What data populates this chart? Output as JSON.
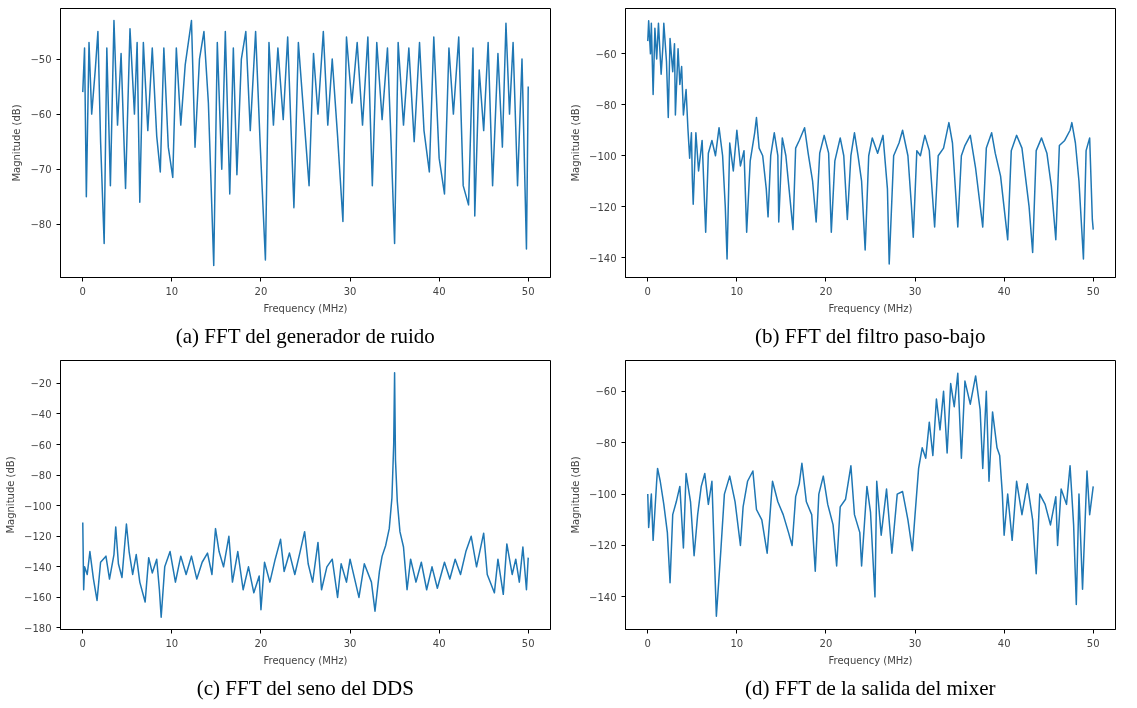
{
  "chart_data": [
    {
      "type": "line",
      "title": "(a) FFT del generador de ruido",
      "xlabel": "Frequency (MHz)",
      "ylabel": "Magnitude (dB)",
      "color": "#1f77b4",
      "grid": false,
      "xlim": [
        -2.5,
        52.5
      ],
      "ylim": [
        -89.7,
        -40.8
      ],
      "xticks": [
        0,
        10,
        20,
        30,
        40,
        50
      ],
      "yticks": [
        -80,
        -70,
        -60,
        -50
      ],
      "x": [
        0,
        0.2,
        0.4,
        0.7,
        1.0,
        1.4,
        1.7,
        2.0,
        2.4,
        2.7,
        3.1,
        3.5,
        3.9,
        4.3,
        4.8,
        5.3,
        5.8,
        6.1,
        6.4,
        6.8,
        7.3,
        7.8,
        8.3,
        8.7,
        9.1,
        9.6,
        10.1,
        10.5,
        11.0,
        11.5,
        12.2,
        12.6,
        13.1,
        13.6,
        14.1,
        14.7,
        15.1,
        15.6,
        16.0,
        16.5,
        16.9,
        17.3,
        17.8,
        18.3,
        18.8,
        19.4,
        19.9,
        20.5,
        20.9,
        21.4,
        21.9,
        22.5,
        23.0,
        23.7,
        24.2,
        24.8,
        25.4,
        25.9,
        26.4,
        27.0,
        27.5,
        28.0,
        28.6,
        29.2,
        29.6,
        30.2,
        30.8,
        31.4,
        32.0,
        32.5,
        33.0,
        33.6,
        34.2,
        34.6,
        35.0,
        35.4,
        36.0,
        36.6,
        37.2,
        37.8,
        38.3,
        38.9,
        39.4,
        40.0,
        40.6,
        41.1,
        41.6,
        42.2,
        42.7,
        43.3,
        43.8,
        44.0,
        44.5,
        45.0,
        45.5,
        46.0,
        46.6,
        47.1,
        47.5,
        47.9,
        48.3,
        48.8,
        49.3,
        49.8,
        50.0
      ],
      "values": [
        -56,
        -48,
        -75,
        -47,
        -60,
        -52,
        -45,
        -65,
        -83.5,
        -48,
        -73,
        -43,
        -62,
        -49,
        -73.5,
        -44.5,
        -60,
        -47,
        -76,
        -47,
        -63,
        -48,
        -64,
        -70.5,
        -48,
        -66,
        -71.5,
        -48,
        -62,
        -51,
        -43,
        -66,
        -50,
        -45,
        -58,
        -87.5,
        -47,
        -70,
        -45,
        -74.5,
        -48,
        -71,
        -50,
        -45,
        -63,
        -45,
        -65,
        -86.5,
        -47,
        -62,
        -48,
        -61,
        -46,
        -77,
        -47,
        -60,
        -73,
        -49,
        -60,
        -45,
        -62,
        -50,
        -64,
        -79.5,
        -46,
        -58,
        -47,
        -62,
        -46,
        -73,
        -47,
        -61,
        -48,
        -65,
        -83.5,
        -47,
        -62,
        -48,
        -65,
        -47,
        -63,
        -70.5,
        -46,
        -68,
        -74.5,
        -48,
        -60,
        -46,
        -73,
        -76.5,
        -48,
        -78.5,
        -52,
        -63,
        -47,
        -73,
        -49,
        -66,
        -43.5,
        -60,
        -47,
        -73,
        -50,
        -84.5,
        -55
      ]
    },
    {
      "type": "line",
      "title": "(b) FFT del filtro paso-bajo",
      "xlabel": "Frequency (MHz)",
      "ylabel": "Magnitude (dB)",
      "color": "#1f77b4",
      "grid": false,
      "xlim": [
        -2.5,
        52.5
      ],
      "ylim": [
        -147.8,
        -42.2
      ],
      "xticks": [
        0,
        10,
        20,
        30,
        40,
        50
      ],
      "yticks": [
        -140,
        -120,
        -100,
        -80,
        -60
      ],
      "x": [
        0,
        0.1,
        0.3,
        0.4,
        0.6,
        0.8,
        1.0,
        1.2,
        1.5,
        1.7,
        1.8,
        2.1,
        2.3,
        2.5,
        2.8,
        3.0,
        3.1,
        3.4,
        3.6,
        3.8,
        4.0,
        4.3,
        4.5,
        4.7,
        4.9,
        5.0,
        5.1,
        5.4,
        5.7,
        6.1,
        6.5,
        6.8,
        7.2,
        7.6,
        8.0,
        8.4,
        8.7,
        8.9,
        9.2,
        9.6,
        10.0,
        10.4,
        10.8,
        11.1,
        11.5,
        12.0,
        12.2,
        12.5,
        12.9,
        13.3,
        13.5,
        13.8,
        14.2,
        14.6,
        14.7,
        15.1,
        15.5,
        16.3,
        16.6,
        17.0,
        17.6,
        18.0,
        18.5,
        18.9,
        19.3,
        19.8,
        20.3,
        20.6,
        21.0,
        21.6,
        22.0,
        22.4,
        22.8,
        23.2,
        23.6,
        24.0,
        24.4,
        24.8,
        25.2,
        25.8,
        26.4,
        26.9,
        27.1,
        27.6,
        28.2,
        28.6,
        29.2,
        29.6,
        29.8,
        30.2,
        30.6,
        31.1,
        31.6,
        32.2,
        32.6,
        33.2,
        33.8,
        34.2,
        34.8,
        35.2,
        35.6,
        36.2,
        36.8,
        37.6,
        38.0,
        38.6,
        39.0,
        39.6,
        40.4,
        40.8,
        41.4,
        42.0,
        42.8,
        43.2,
        43.6,
        44.2,
        44.8,
        45.3,
        45.8,
        46.2,
        46.8,
        47.4,
        47.6,
        48.0,
        48.4,
        48.9,
        49.2,
        49.6,
        49.9,
        50.0
      ],
      "values": [
        -55,
        -47,
        -60,
        -48,
        -76,
        -50,
        -62,
        -48,
        -68,
        -57,
        -48,
        -63,
        -85,
        -54,
        -67,
        -56,
        -84,
        -58,
        -72,
        -65,
        -84,
        -74,
        -89,
        -101,
        -91,
        -109,
        -119,
        -91,
        -106,
        -94,
        -130,
        -99,
        -94,
        -100,
        -89,
        -100,
        -120,
        -140.5,
        -95,
        -106,
        -90,
        -104,
        -98,
        -130,
        -102,
        -91,
        -85,
        -97,
        -100,
        -113,
        -124,
        -100,
        -91,
        -100,
        -126,
        -93,
        -100,
        -129,
        -97,
        -94,
        -89,
        -99,
        -110,
        -126,
        -99,
        -92,
        -99,
        -130,
        -102,
        -93,
        -100,
        -125,
        -100,
        -91,
        -100,
        -110,
        -137,
        -100,
        -93,
        -99,
        -92,
        -113,
        -142.5,
        -100,
        -95,
        -90,
        -100,
        -120,
        -132,
        -98,
        -100,
        -92,
        -98,
        -128,
        -100,
        -97,
        -87,
        -95,
        -128,
        -100,
        -96,
        -92,
        -105,
        -128,
        -97,
        -91,
        -99,
        -108,
        -133,
        -98,
        -92,
        -97,
        -120,
        -138,
        -98,
        -93,
        -99,
        -112,
        -133,
        -96,
        -94,
        -90,
        -87,
        -95,
        -110,
        -140.5,
        -98,
        -93,
        -125,
        -129
      ]
    },
    {
      "type": "line",
      "title": "(c) FFT del seno del DDS",
      "xlabel": "Frequency (MHz)",
      "ylabel": "Magnitude (dB)",
      "color": "#1f77b4",
      "grid": false,
      "xlim": [
        -2.5,
        52.5
      ],
      "ylim": [
        -181,
        -5
      ],
      "xticks": [
        0,
        10,
        20,
        30,
        40,
        50
      ],
      "yticks": [
        -180,
        -160,
        -140,
        -120,
        -100,
        -80,
        -60,
        -40,
        -20
      ],
      "x": [
        0,
        0.1,
        0.2,
        0.5,
        0.8,
        1.2,
        1.6,
        2.0,
        2.6,
        3.0,
        3.5,
        3.7,
        4.0,
        4.4,
        4.9,
        5.2,
        5.6,
        6.0,
        6.4,
        7.0,
        7.4,
        7.8,
        8.3,
        8.6,
        8.8,
        9.2,
        9.8,
        10.4,
        11.0,
        11.6,
        12.2,
        12.8,
        13.4,
        14.0,
        14.5,
        14.9,
        15.3,
        15.8,
        16.4,
        16.8,
        17.4,
        18.0,
        18.6,
        19.2,
        19.8,
        20.0,
        20.4,
        21.0,
        21.6,
        22.2,
        22.6,
        23.2,
        23.8,
        24.4,
        24.9,
        25.3,
        25.8,
        26.4,
        26.8,
        27.4,
        28.0,
        28.6,
        29.0,
        29.6,
        30.0,
        31.0,
        31.6,
        32.4,
        32.8,
        33.3,
        33.6,
        34.0,
        34.4,
        34.7,
        34.9,
        35.0,
        35.1,
        35.3,
        35.6,
        36.0,
        36.4,
        36.8,
        37.4,
        38.0,
        38.6,
        39.2,
        39.8,
        40.6,
        41.2,
        41.8,
        42.4,
        43.0,
        43.6,
        44.2,
        45.0,
        45.4,
        46.2,
        46.6,
        47.2,
        47.6,
        48.2,
        48.6,
        49.0,
        49.4,
        49.8,
        50.0
      ],
      "values": [
        -111,
        -155,
        -140,
        -145,
        -130,
        -148,
        -162,
        -137,
        -133,
        -148,
        -132,
        -114,
        -138,
        -147,
        -112,
        -130,
        -145,
        -132,
        -150,
        -163,
        -134,
        -144,
        -135,
        -155,
        -173,
        -140,
        -130,
        -150,
        -133,
        -145,
        -133,
        -148,
        -137,
        -131,
        -145,
        -115,
        -130,
        -140,
        -120,
        -150,
        -130,
        -155,
        -140,
        -157,
        -146,
        -168,
        -137,
        -150,
        -135,
        -122,
        -143,
        -131,
        -145,
        -130,
        -117,
        -138,
        -150,
        -124,
        -155,
        -140,
        -135,
        -160,
        -138,
        -150,
        -135,
        -160,
        -138,
        -150,
        -169,
        -143,
        -133,
        -126,
        -115,
        -95,
        -60,
        -13,
        -70,
        -97,
        -117,
        -127,
        -155,
        -135,
        -150,
        -137,
        -155,
        -140,
        -154,
        -137,
        -148,
        -135,
        -145,
        -130,
        -120,
        -140,
        -118,
        -145,
        -157,
        -135,
        -158,
        -125,
        -145,
        -135,
        -150,
        -127,
        -155,
        -134
      ]
    },
    {
      "type": "line",
      "title": "(d) FFT de la salida del mixer",
      "xlabel": "Frequency (MHz)",
      "ylabel": "Magnitude (dB)",
      "color": "#1f77b4",
      "grid": false,
      "xlim": [
        -2.5,
        52.5
      ],
      "ylim": [
        -152.7,
        -48
      ],
      "xticks": [
        0,
        10,
        20,
        30,
        40,
        50
      ],
      "yticks": [
        -140,
        -120,
        -100,
        -80,
        -60
      ],
      "x": [
        0,
        0.1,
        0.4,
        0.6,
        1.0,
        1.1,
        1.4,
        1.8,
        2.2,
        2.5,
        2.8,
        3.2,
        3.6,
        4.0,
        4.3,
        4.8,
        5.2,
        5.6,
        6.0,
        6.4,
        6.8,
        7.2,
        7.7,
        8.2,
        8.6,
        9.2,
        9.8,
        10.4,
        10.7,
        11.2,
        11.8,
        12.2,
        12.8,
        13.4,
        14.0,
        14.6,
        15.2,
        15.8,
        16.2,
        16.6,
        17.0,
        17.3,
        17.8,
        18.4,
        18.8,
        19.2,
        19.7,
        20.2,
        20.8,
        21.2,
        21.6,
        22.2,
        22.8,
        23.2,
        23.8,
        24.0,
        24.6,
        25.0,
        25.5,
        25.7,
        26.2,
        26.8,
        27.4,
        28.0,
        28.6,
        29.2,
        29.7,
        30.0,
        30.4,
        30.8,
        31.2,
        31.6,
        32.0,
        32.4,
        32.8,
        33.2,
        33.6,
        34.0,
        34.4,
        34.8,
        35.2,
        35.6,
        36.2,
        36.8,
        37.3,
        37.6,
        38.0,
        38.3,
        38.7,
        39.2,
        39.5,
        39.8,
        40.0,
        40.4,
        40.9,
        41.4,
        42.0,
        42.6,
        43.2,
        43.6,
        44.0,
        44.6,
        45.2,
        45.8,
        46.0,
        46.4,
        47.0,
        47.4,
        47.8,
        48.1,
        48.4,
        48.8,
        49.3,
        49.6,
        50.0
      ],
      "values": [
        -100,
        -113,
        -100,
        -118,
        -95,
        -90,
        -95,
        -104,
        -115,
        -134.5,
        -108,
        -103,
        -97,
        -121,
        -92,
        -103,
        -124,
        -108,
        -97,
        -92,
        -104,
        -95,
        -147.5,
        -122,
        -100,
        -93,
        -103,
        -120,
        -105,
        -95,
        -91,
        -106,
        -110,
        -123,
        -95,
        -103,
        -108,
        -115,
        -120,
        -101,
        -96,
        -88,
        -103,
        -108,
        -130,
        -100,
        -93,
        -104,
        -112,
        -128,
        -105,
        -102,
        -89,
        -108,
        -115,
        -128,
        -97,
        -107,
        -140,
        -95,
        -116,
        -98,
        -123,
        -100,
        -99,
        -110,
        -122,
        -108,
        -90,
        -82,
        -86,
        -72,
        -85,
        -63,
        -75,
        -60,
        -84,
        -57,
        -66,
        -53,
        -86,
        -56,
        -65,
        -54,
        -67,
        -90,
        -60,
        -95,
        -68,
        -82,
        -85,
        -100,
        -116,
        -100,
        -118,
        -95,
        -108,
        -96,
        -110,
        -131,
        -100,
        -104,
        -112,
        -101,
        -120,
        -98,
        -104,
        -89,
        -112,
        -143,
        -100,
        -137,
        -91,
        -108,
        -97
      ]
    }
  ]
}
